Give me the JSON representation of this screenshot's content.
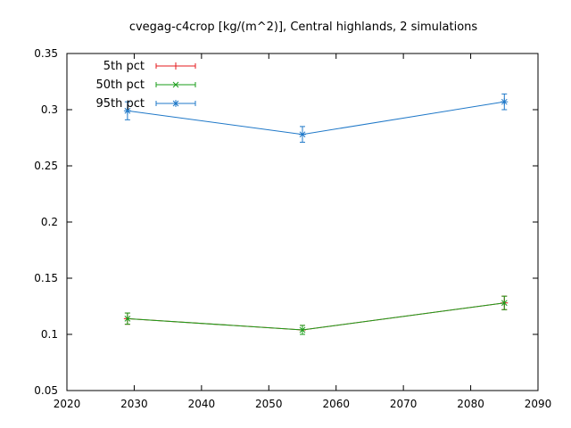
{
  "chart_data": {
    "type": "line",
    "title": "cvegag-c4crop [kg/(m^2)], Central highlands, 2 simulations",
    "xlabel": "",
    "ylabel": "",
    "xlim": [
      2020,
      2090
    ],
    "ylim": [
      0.05,
      0.35
    ],
    "x_ticks": [
      2020,
      2030,
      2040,
      2050,
      2060,
      2070,
      2080,
      2090
    ],
    "y_ticks": [
      0.05,
      0.1,
      0.15,
      0.2,
      0.25,
      0.3,
      0.35
    ],
    "grid": false,
    "legend_position": "top-left",
    "x": [
      2029,
      2055,
      2085
    ],
    "series": [
      {
        "name": "5th pct",
        "color": "#e41a1c",
        "marker": "plus",
        "values": [
          0.114,
          0.104,
          0.128
        ],
        "errors": [
          0.005,
          0.004,
          0.006
        ]
      },
      {
        "name": "50th pct",
        "color": "#1a9e1a",
        "marker": "cross",
        "values": [
          0.114,
          0.104,
          0.128
        ],
        "errors": [
          0.005,
          0.004,
          0.006
        ]
      },
      {
        "name": "95th pct",
        "color": "#1f78c8",
        "marker": "star",
        "values": [
          0.299,
          0.278,
          0.307
        ],
        "errors": [
          0.008,
          0.007,
          0.007
        ]
      }
    ]
  }
}
